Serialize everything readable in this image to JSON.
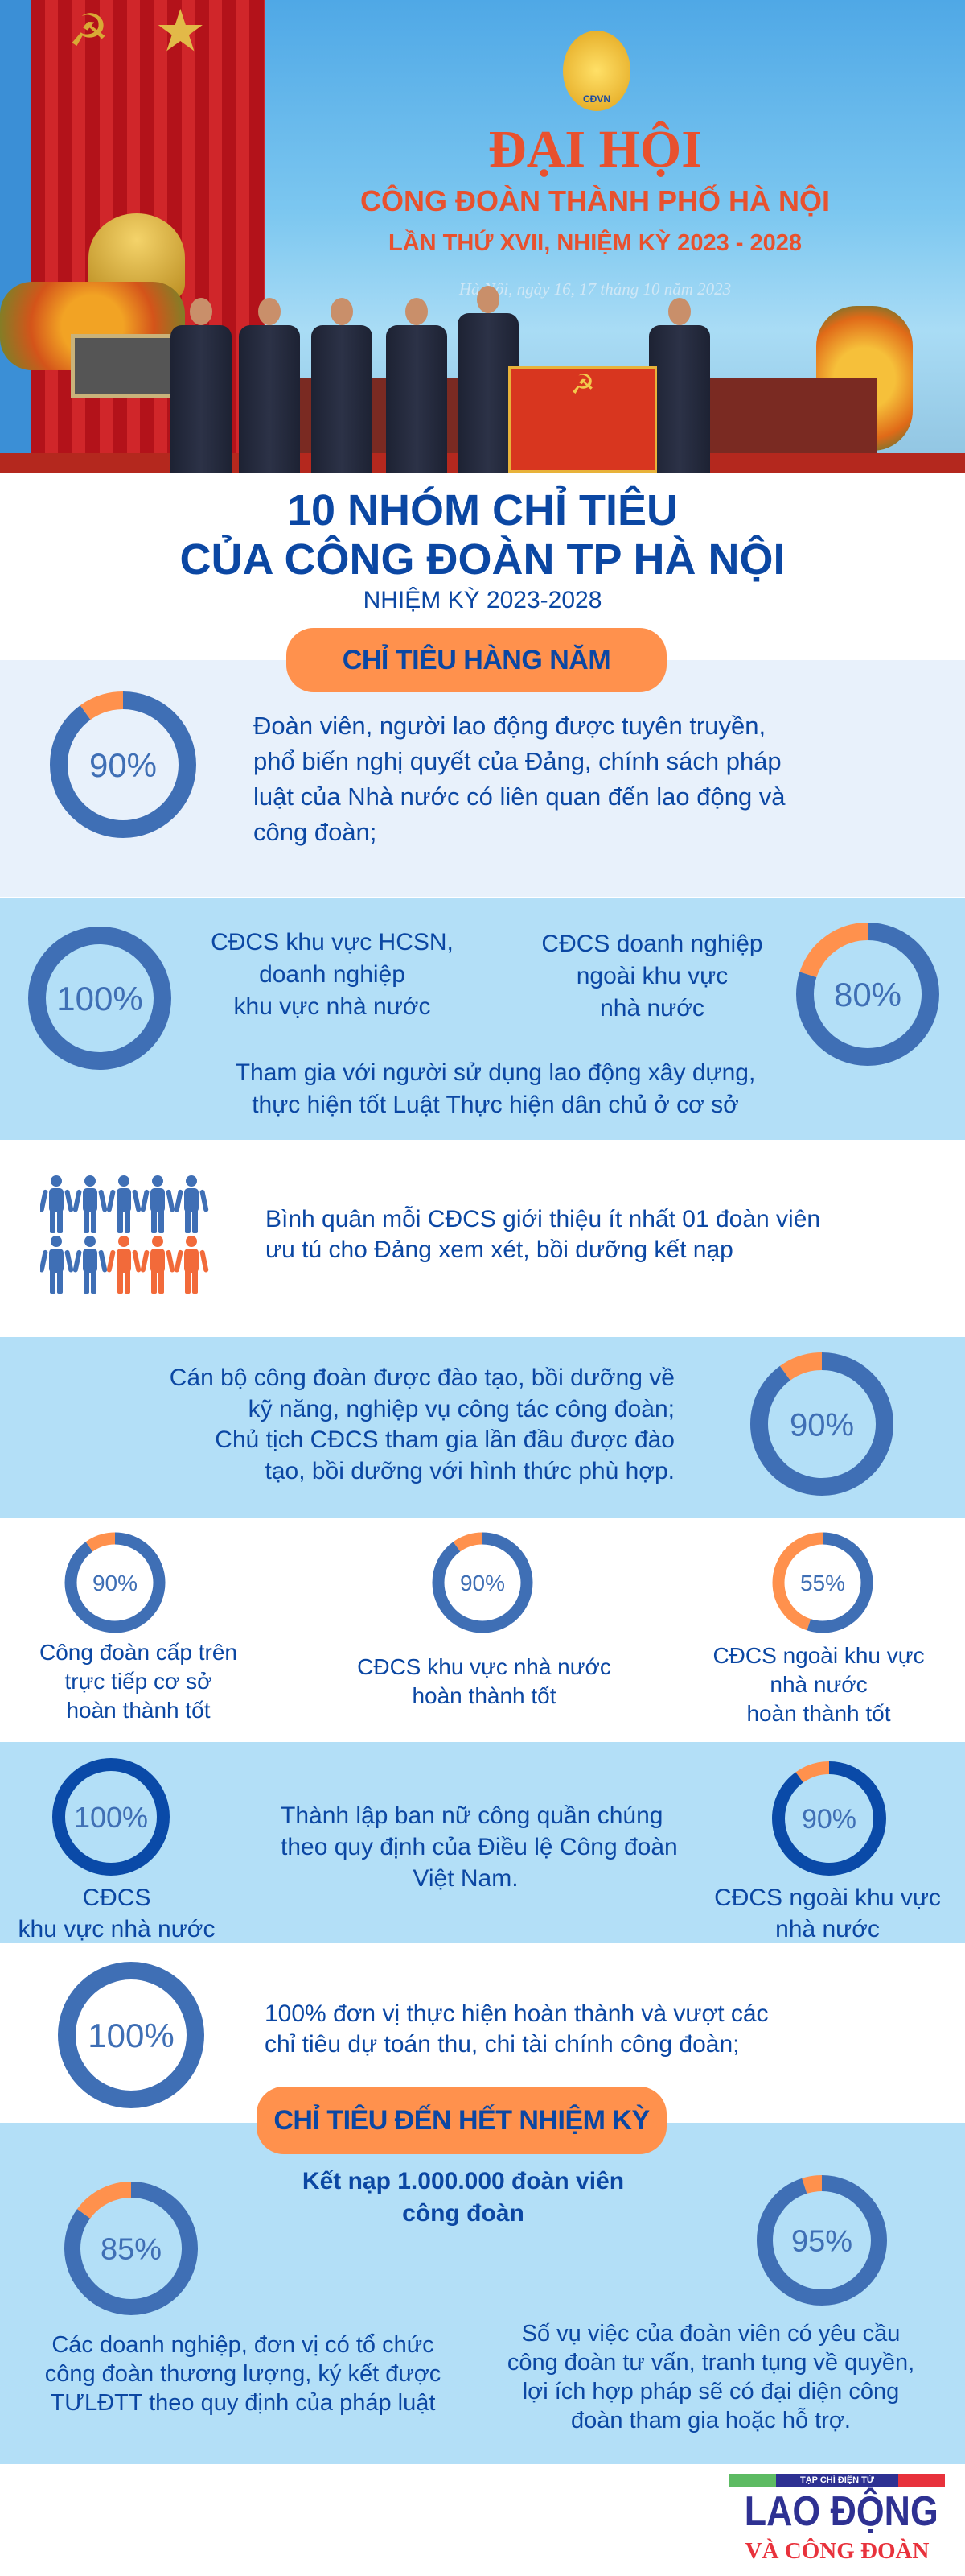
{
  "banner": {
    "headline": "ĐẠI HỘI",
    "org": "CÔNG ĐOÀN THÀNH PHỐ HÀ NỘI",
    "term": "LẦN THỨ XVII, NHIỆM KỲ 2023 - 2028",
    "date": "Hà Nội, ngày 16, 17 tháng 10 năm 2023",
    "emblem_text": "CĐVN"
  },
  "title": {
    "line1": "10 NHÓM CHỈ TIÊU",
    "line2": "CỦA CÔNG ĐOÀN TP HÀ NỘI",
    "subtitle": "NHIỆM KỲ 2023-2028"
  },
  "colors": {
    "text": "#0b47a3",
    "ring": "#3f6fb5",
    "ring_dark": "#0a4aa8",
    "accent": "#ff914d",
    "light_bg": "#e8f1fb",
    "blue_bg": "#b3dff7"
  },
  "annual": {
    "label": "CHỈ TIÊU HÀNG NĂM",
    "s1": {
      "percent": 90,
      "value": "90%",
      "lines": [
        "Đoàn viên, người lao động được tuyên truyền,",
        "phổ biến nghị quyết của Đảng, chính sách pháp",
        "luật của Nhà nước có liên quan đến lao động và",
        "công đoàn;"
      ]
    },
    "s2": {
      "left": {
        "percent": 100,
        "value": "100%",
        "lines": [
          "CĐCS khu vực HCSN,",
          "doanh nghiệp",
          "khu vực nhà nước"
        ]
      },
      "right": {
        "percent": 80,
        "value": "80%",
        "lines": [
          "CĐCS doanh nghiệp",
          "ngoài khu vực",
          "nhà nước"
        ]
      },
      "bottom": [
        "Tham gia với người sử dụng lao động xây dựng,",
        "thực hiện tốt Luật Thực hiện dân chủ ở cơ sở"
      ]
    },
    "s3": {
      "icon": "people-group-icon",
      "highlighted": 3,
      "total": 10,
      "lines": [
        "Bình quân mỗi CĐCS giới thiệu ít nhất 01 đoàn viên",
        "ưu tú cho Đảng xem xét, bồi dưỡng kết nạp"
      ]
    },
    "s4": {
      "percent": 90,
      "value": "90%",
      "lines": [
        "Cán bộ công đoàn được đào tạo, bồi dưỡng về",
        "kỹ năng, nghiệp vụ công tác công đoàn;",
        "Chủ tịch CĐCS tham gia lần đầu được đào",
        "tạo, bồi dưỡng với hình thức phù hợp."
      ]
    },
    "s5": [
      {
        "percent": 90,
        "value": "90%",
        "lines": [
          "Công đoàn cấp trên",
          "trực tiếp cơ sở",
          "hoàn thành tốt"
        ]
      },
      {
        "percent": 90,
        "value": "90%",
        "lines": [
          "CĐCS khu vực nhà nước",
          "hoàn thành tốt"
        ]
      },
      {
        "percent": 55,
        "value": "55%",
        "lines": [
          "CĐCS ngoài khu vực",
          "nhà nước",
          "hoàn thành tốt"
        ]
      }
    ],
    "s6": {
      "left": {
        "percent": 100,
        "value": "100%",
        "lines": [
          "CĐCS",
          "khu vực nhà nước"
        ]
      },
      "center": [
        "Thành lập ban nữ công quần chúng",
        "theo quy định của Điều lệ Công đoàn",
        "Việt Nam."
      ],
      "right": {
        "percent": 90,
        "value": "90%",
        "lines": [
          "CĐCS ngoài khu vực",
          "nhà nước"
        ]
      }
    },
    "s7": {
      "percent": 100,
      "value": "100%",
      "lines": [
        "100% đơn vị thực hiện hoàn thành và vượt các",
        "chỉ tiêu dự toán thu, chi tài chính công đoàn;"
      ]
    }
  },
  "term_end": {
    "label": "CHỈ TIÊU ĐẾN HẾT NHIỆM KỲ",
    "headline": [
      "Kết nạp 1.000.000 đoàn viên",
      "công đoàn"
    ],
    "left": {
      "percent": 85,
      "value": "85%",
      "lines": [
        "Các doanh nghiệp, đơn vị có tổ chức",
        "công đoàn thương lượng, ký kết được",
        "TƯLĐTT theo quy định của pháp luật"
      ]
    },
    "right": {
      "percent": 95,
      "value": "95%",
      "lines": [
        "Số vụ việc của đoàn viên có yêu cầu",
        "công đoàn tư vấn, tranh tụng về quyền,",
        "lợi ích hợp pháp sẽ có đại diện công",
        "đoàn tham gia hoặc hỗ trợ."
      ]
    }
  },
  "logo": {
    "tagline": "TẠP CHÍ ĐIỆN TỬ",
    "name": "LAO ĐỘNG",
    "sub": "VÀ CÔNG ĐOÀN"
  }
}
